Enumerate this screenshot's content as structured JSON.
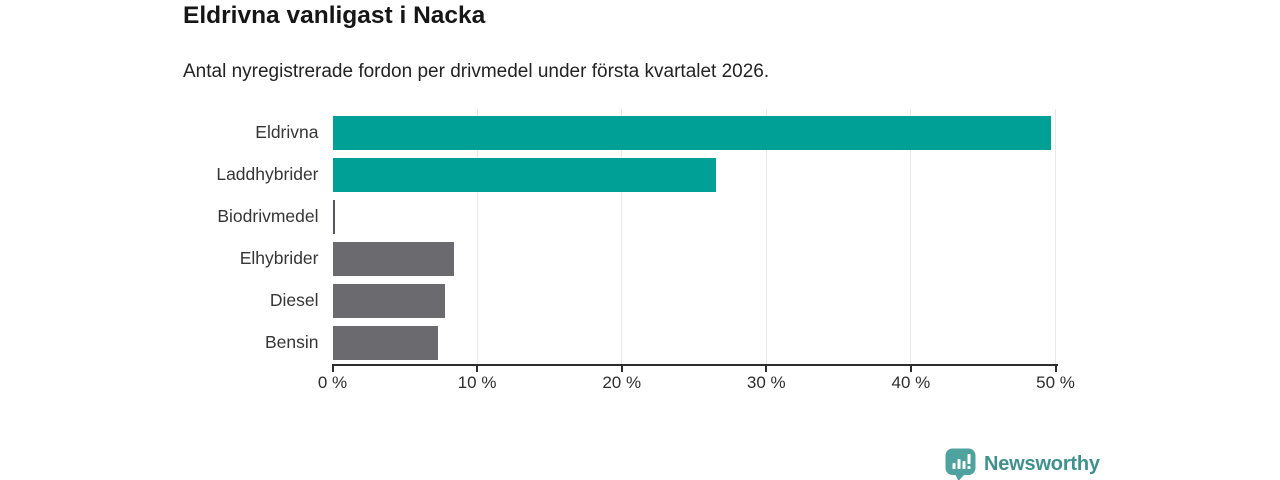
{
  "chart_data": {
    "type": "bar",
    "orientation": "horizontal",
    "title": "Eldrivna vanligast i Nacka",
    "subtitle": "Antal nyregistrerade fordon per drivmedel under första kvartalet 2026.",
    "categories": [
      "Eldrivna",
      "Laddhybrider",
      "Biodrivmedel",
      "Elhybrider",
      "Diesel",
      "Bensin"
    ],
    "values": [
      49.7,
      26.5,
      0.15,
      8.4,
      7.8,
      7.3
    ],
    "unit": "%",
    "xlabel": "",
    "ylabel": "",
    "xlim": [
      0,
      50
    ],
    "x_ticks": [
      {
        "value": 0,
        "label": "0 %"
      },
      {
        "value": 10,
        "label": "10 %"
      },
      {
        "value": 20,
        "label": "20 %"
      },
      {
        "value": 30,
        "label": "30 %"
      },
      {
        "value": 40,
        "label": "40 %"
      },
      {
        "value": 50,
        "label": "50 %"
      }
    ],
    "bar_colors": [
      "#00A096",
      "#00A096",
      "#55555A",
      "#6A6A6F",
      "#6A6A6F",
      "#6A6A6F"
    ],
    "grid": "vertical-gridlines",
    "legend": "none"
  },
  "footer": {
    "brand": "Newsworthy",
    "brand_color": "#3E918D",
    "icon": "newsworthy-bar-chart-bubble-icon",
    "icon_color": "#4FA39E"
  },
  "colors": {
    "accent_teal": "#00A096",
    "bar_gray": "#6A6A6F",
    "gridline": "#E8E8E8",
    "axis": "#2E2E2E",
    "title_text": "#161616"
  }
}
